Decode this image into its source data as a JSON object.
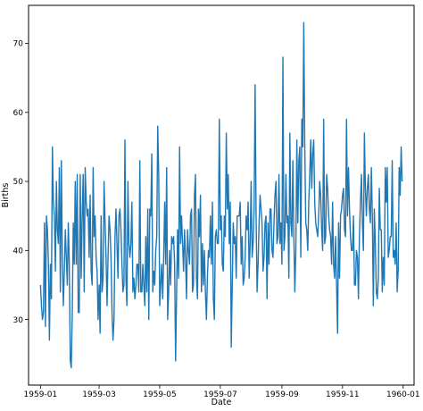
{
  "chart_data": {
    "type": "line",
    "title": "",
    "xlabel": "Date",
    "ylabel": "Births",
    "x_axis": {
      "type": "date",
      "range": [
        "1958-12-20",
        "1960-01-12"
      ],
      "ticks": [
        "1959-01-01",
        "1959-03-01",
        "1959-05-01",
        "1959-07-01",
        "1959-09-01",
        "1959-11-01",
        "1960-01-01"
      ],
      "tick_labels": [
        "1959-01",
        "1959-03",
        "1959-05",
        "1959-07",
        "1959-09",
        "1959-11",
        "1960-01"
      ]
    },
    "y_axis": {
      "range": [
        20.5,
        75.5
      ],
      "ticks": [
        30,
        40,
        50,
        60,
        70
      ],
      "tick_labels": [
        "30",
        "40",
        "50",
        "60",
        "70"
      ]
    },
    "grid": false,
    "legend": "none",
    "line_color": "#1f77b4",
    "series": [
      {
        "x_start": "1959-01-01",
        "x_step_days": 1,
        "values": [
          35,
          32,
          30,
          31,
          44,
          29,
          45,
          43,
          38,
          27,
          38,
          33,
          55,
          47,
          45,
          37,
          50,
          43,
          41,
          52,
          34,
          53,
          39,
          32,
          37,
          43,
          39,
          35,
          44,
          38,
          24,
          23,
          31,
          44,
          38,
          50,
          38,
          51,
          31,
          31,
          51,
          36,
          45,
          51,
          34,
          52,
          47,
          45,
          46,
          39,
          48,
          37,
          35,
          52,
          42,
          45,
          39,
          37,
          30,
          35,
          28,
          45,
          34,
          36,
          50,
          44,
          39,
          32,
          39,
          45,
          43,
          39,
          31,
          27,
          30,
          42,
          46,
          41,
          36,
          45,
          46,
          43,
          38,
          34,
          35,
          56,
          36,
          32,
          50,
          41,
          39,
          41,
          47,
          34,
          36,
          33,
          35,
          38,
          38,
          34,
          53,
          34,
          34,
          38,
          35,
          32,
          42,
          34,
          46,
          30,
          46,
          45,
          54,
          34,
          37,
          35,
          40,
          42,
          58,
          51,
          32,
          35,
          38,
          33,
          39,
          47,
          38,
          52,
          30,
          34,
          40,
          35,
          42,
          41,
          42,
          38,
          24,
          34,
          43,
          36,
          55,
          41,
          45,
          41,
          37,
          43,
          39,
          33,
          43,
          40,
          38,
          45,
          46,
          34,
          35,
          48,
          51,
          36,
          33,
          46,
          42,
          48,
          34,
          41,
          35,
          40,
          34,
          30,
          36,
          40,
          39,
          45,
          38,
          47,
          33,
          30,
          42,
          43,
          41,
          41,
          59,
          43,
          45,
          38,
          37,
          45,
          42,
          57,
          46,
          51,
          41,
          47,
          26,
          35,
          44,
          41,
          42,
          36,
          45,
          45,
          45,
          47,
          38,
          42,
          35,
          36,
          39,
          45,
          43,
          47,
          36,
          41,
          50,
          39,
          41,
          46,
          64,
          45,
          34,
          38,
          44,
          48,
          46,
          44,
          37,
          39,
          44,
          45,
          33,
          44,
          38,
          46,
          46,
          40,
          39,
          44,
          48,
          50,
          41,
          42,
          51,
          41,
          44,
          38,
          68,
          40,
          42,
          51,
          44,
          45,
          36,
          57,
          44,
          42,
          53,
          42,
          34,
          40,
          56,
          44,
          53,
          55,
          39,
          59,
          55,
          73,
          55,
          44,
          43,
          40,
          47,
          51,
          56,
          49,
          54,
          56,
          47,
          44,
          43,
          42,
          45,
          50,
          48,
          43,
          40,
          59,
          41,
          42,
          51,
          49,
          45,
          43,
          42,
          38,
          47,
          38,
          36,
          42,
          35,
          28,
          44,
          36,
          45,
          46,
          48,
          49,
          43,
          42,
          59,
          45,
          52,
          46,
          42,
          40,
          40,
          45,
          35,
          35,
          40,
          39,
          33,
          42,
          47,
          51,
          44,
          40,
          57,
          49,
          45,
          49,
          51,
          46,
          44,
          52,
          45,
          32,
          46,
          41,
          34,
          33,
          36,
          49,
          43,
          43,
          34,
          39,
          35,
          52,
          47,
          52,
          39,
          40,
          42,
          42,
          53,
          39,
          40,
          38,
          44,
          34,
          37,
          52,
          48,
          55,
          50
        ]
      }
    ]
  }
}
